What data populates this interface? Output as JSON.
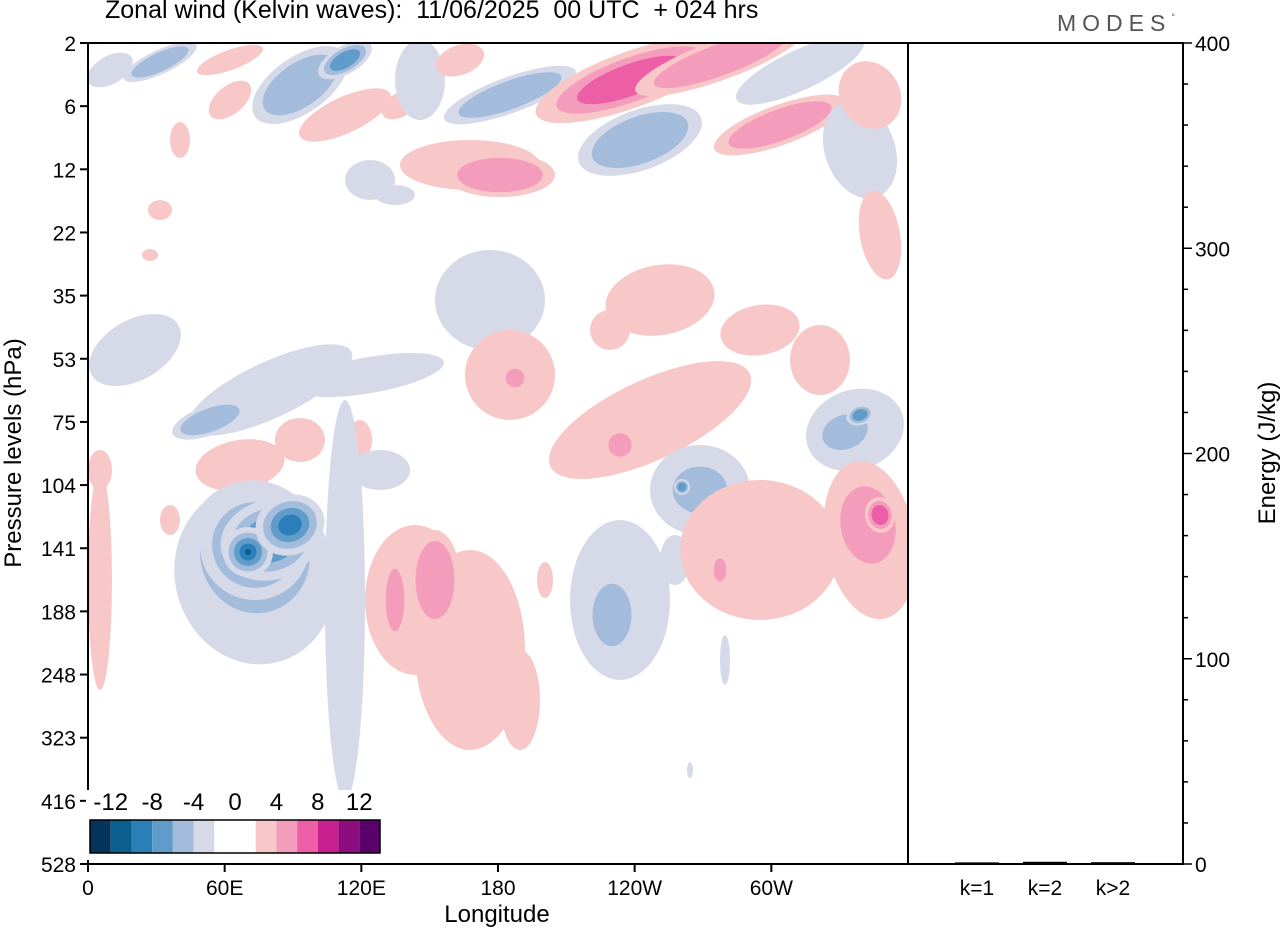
{
  "title": "Zonal wind (Kelvin waves):  11/06/2025  00 UTC  + 024 hrs",
  "brand": "MODES",
  "brand_mark": "°",
  "colors": {
    "neg": [
      "#05355a",
      "#0b5f8f",
      "#2a7fb8",
      "#5f9cc9",
      "#a3bcdc",
      "#d6d9e8"
    ],
    "pos": [
      "#f8c8c8",
      "#f49cbb",
      "#ec5ea5",
      "#c8208f",
      "#8d0d7e",
      "#5a006a"
    ]
  },
  "chart_data": [
    {
      "type": "heatmap",
      "title": "Zonal wind (Kelvin waves):  11/06/2025  00 UTC  + 024 hrs",
      "xlabel": "Longitude",
      "ylabel": "Pressure levels (hPa)",
      "x_ticks": [
        "0",
        "60E",
        "120E",
        "180",
        "120W",
        "60W"
      ],
      "y_ticks": [
        "2",
        "6",
        "12",
        "22",
        "35",
        "53",
        "75",
        "104",
        "141",
        "188",
        "248",
        "323",
        "416",
        "528"
      ],
      "colorbar_labels": [
        "-12",
        "-8",
        "-4",
        "0",
        "4",
        "8",
        "12"
      ],
      "colorbar_levels": [
        -14,
        -12,
        -10,
        -8,
        -6,
        -4,
        -2,
        2,
        4,
        6,
        8,
        10,
        12,
        14
      ],
      "grid": false
    },
    {
      "type": "bar",
      "ylabel": "Energy (J/kg)",
      "y_ticks": [
        "0",
        "100",
        "200",
        "300",
        "400"
      ],
      "ylim": [
        0,
        400
      ],
      "categories": [
        "k=1",
        "k=2",
        "k>2"
      ],
      "values": [
        0.3,
        0.6,
        0.4
      ]
    }
  ]
}
